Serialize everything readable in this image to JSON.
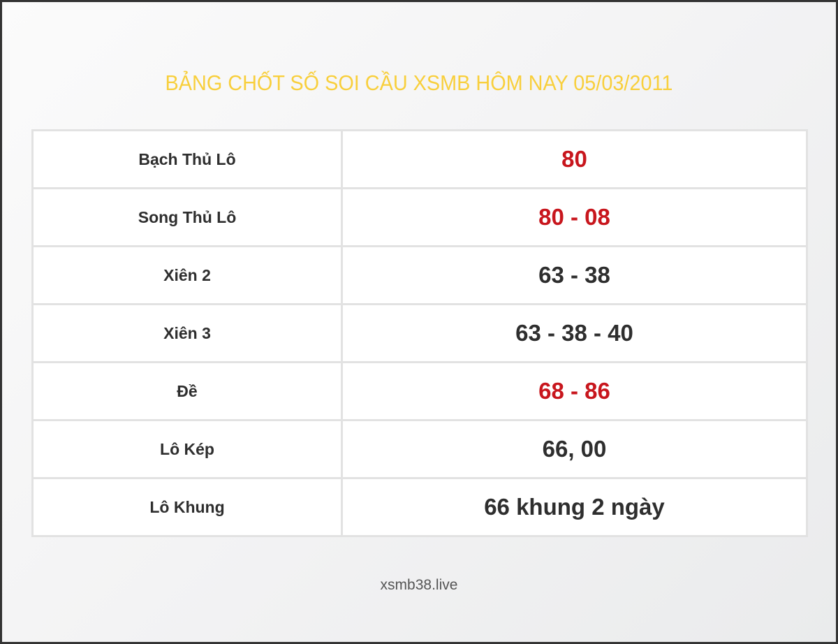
{
  "title": "BẢNG CHỐT SỐ SOI CẦU XSMB HÔM NAY 05/03/2011",
  "colors": {
    "title": "#f8cf3c",
    "highlight": "#c8161d",
    "text": "#2e2e2e"
  },
  "rows": [
    {
      "label": "Bạch Thủ Lô",
      "value": "80",
      "highlight": true
    },
    {
      "label": "Song Thủ Lô",
      "value": "80 - 08",
      "highlight": true
    },
    {
      "label": "Xiên 2",
      "value": "63 - 38",
      "highlight": false
    },
    {
      "label": "Xiên 3",
      "value": "63 - 38 - 40",
      "highlight": false
    },
    {
      "label": "Đề",
      "value": "68 - 86",
      "highlight": true
    },
    {
      "label": "Lô Kép",
      "value": "66, 00",
      "highlight": false
    },
    {
      "label": "Lô Khung",
      "value": "66 khung 2 ngày",
      "highlight": false
    }
  ],
  "footer": "xsmb38.live"
}
